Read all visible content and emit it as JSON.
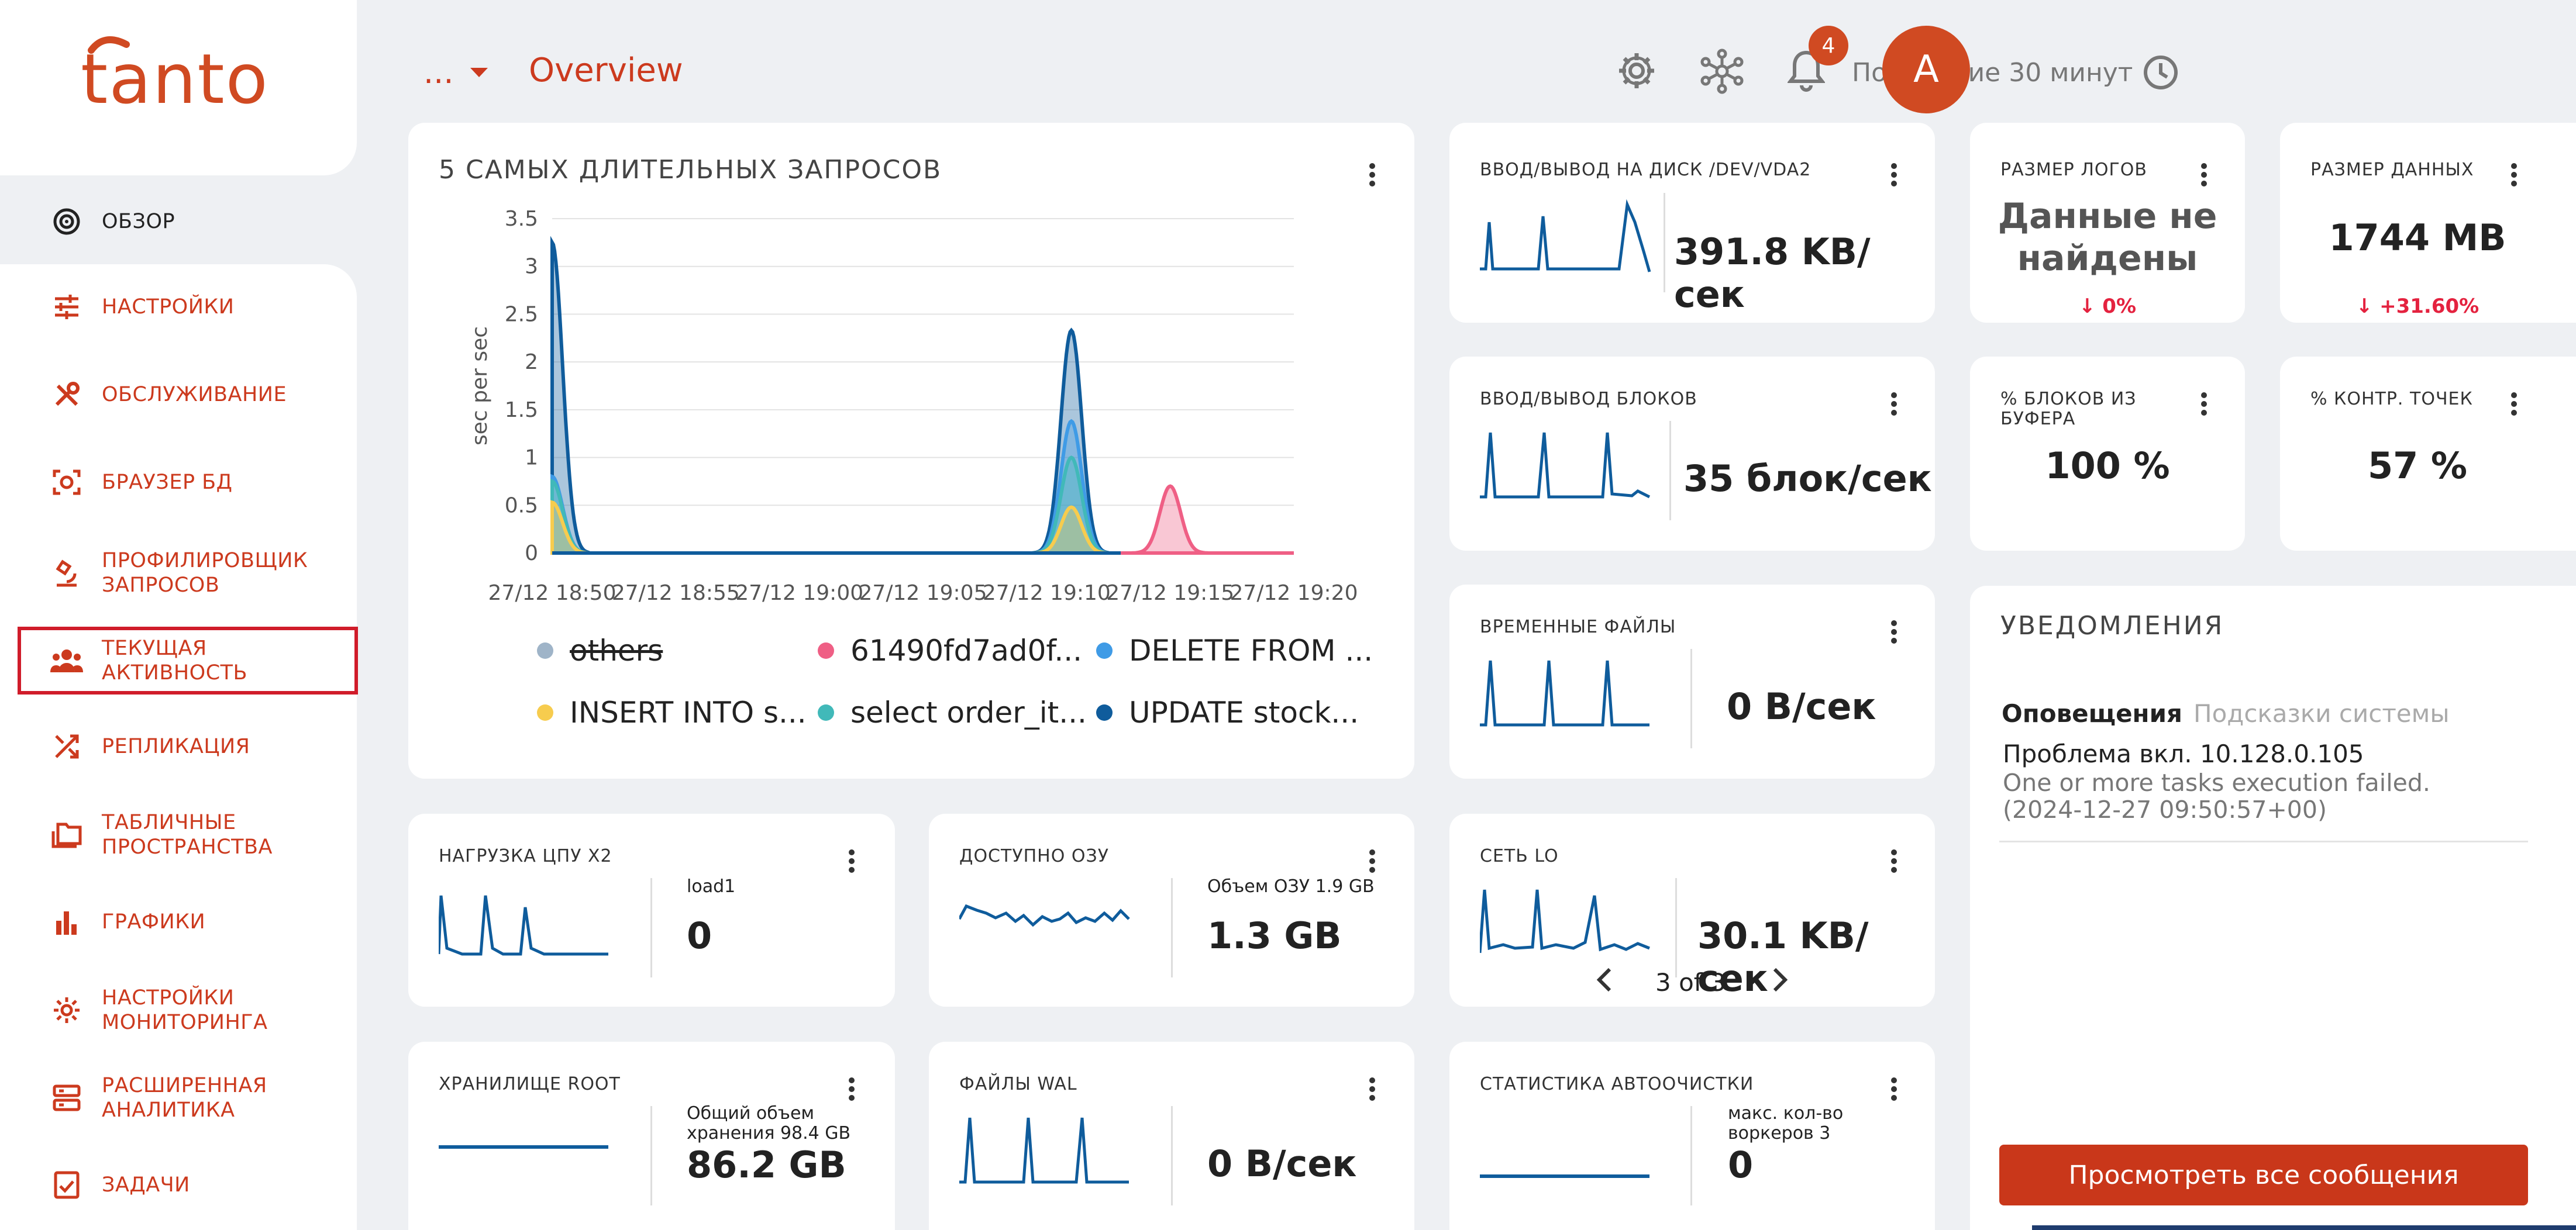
{
  "brand": {
    "logo_text": "tantor",
    "accent": "#d04a22",
    "text": "#cc3a1e",
    "selected_bg": "#eef0f3"
  },
  "header": {
    "context": "...",
    "title": "Overview",
    "time_range": "Последние 30 минут",
    "notifications_count": "4",
    "avatar": "A"
  },
  "sidebar": {
    "items": [
      {
        "label": "ОБЗОР",
        "icon": "target-icon"
      },
      {
        "label": "НАСТРОЙКИ",
        "icon": "sliders-icon"
      },
      {
        "label": "ОБСЛУЖИВАНИЕ",
        "icon": "tools-icon"
      },
      {
        "label": "БРАУЗЕР БД",
        "icon": "database-scan-icon"
      },
      {
        "label": "ПРОФИЛИРОВЩИК ЗАПРОСОВ",
        "label_lines": [
          "ПРОФИЛИРОВЩИК",
          "ЗАПРОСОВ"
        ],
        "icon": "microscope-icon"
      },
      {
        "label": "ТЕКУЩАЯ АКТИВНОСТЬ",
        "icon": "users-icon"
      },
      {
        "label": "РЕПЛИКАЦИЯ",
        "icon": "shuffle-icon"
      },
      {
        "label": "ТАБЛИЧНЫЕ ПРОСТРАНСТВА",
        "label_lines": [
          "ТАБЛИЧНЫЕ",
          "ПРОСТРАНСТВА"
        ],
        "icon": "folders-icon"
      },
      {
        "label": "ГРАФИКИ",
        "icon": "bar-chart-icon"
      },
      {
        "label": "НАСТРОЙКИ МОНИТОРИНГА",
        "label_lines": [
          "НАСТРОЙКИ",
          "МОНИТОРИНГА"
        ],
        "icon": "gear-icon"
      },
      {
        "label": "РАСШИРЕННАЯ АНАЛИТИКА",
        "label_lines": [
          "РАСШИРЕННАЯ",
          "АНАЛИТИКА"
        ],
        "icon": "server-icon"
      },
      {
        "label": "ЗАДАЧИ",
        "icon": "checklist-icon"
      }
    ]
  },
  "queries_card": {
    "title": "5 САМЫХ ДЛИТЕЛЬНЫХ ЗАПРОСОВ",
    "legend": [
      {
        "name": "others",
        "color": "#9fb4c8",
        "struck": true
      },
      {
        "name": "61490fd7ad0f...",
        "color": "#ef5f85"
      },
      {
        "name": "DELETE FROM ...",
        "color": "#3f9be6"
      },
      {
        "name": "INSERT INTO s...",
        "color": "#f7cc4e"
      },
      {
        "name": "select order_it...",
        "color": "#41b9b9"
      },
      {
        "name": "UPDATE stock...",
        "color": "#0f5c9c"
      }
    ]
  },
  "chart_data": {
    "type": "area",
    "title": "5 САМЫХ ДЛИТЕЛЬНЫХ ЗАПРОСОВ",
    "ylabel": "sec per sec",
    "xlabel": "",
    "ylim": [
      0,
      3.5
    ],
    "yticks": [
      "0",
      "0.5",
      "1",
      "1.5",
      "2",
      "2.5",
      "3",
      "3.5"
    ],
    "xticks": [
      "27/12 18:50",
      "27/12 18:55",
      "27/12 19:00",
      "27/12 19:05",
      "27/12 19:10",
      "27/12 19:15",
      "27/12 19:20"
    ],
    "xrange_minutes": [
      0,
      30
    ],
    "grid": true,
    "legend_position": "bottom",
    "series": [
      {
        "name": "UPDATE stock...",
        "color": "#0f5c9c",
        "peaks": [
          [
            0,
            3.25
          ],
          [
            21,
            2.33
          ]
        ]
      },
      {
        "name": "DELETE FROM ...",
        "color": "#3f9be6",
        "peaks": [
          [
            0,
            0.8
          ],
          [
            21,
            1.38
          ]
        ]
      },
      {
        "name": "select order_it...",
        "color": "#41b9b9",
        "peaks": [
          [
            0,
            0.75
          ],
          [
            21,
            1.0
          ]
        ]
      },
      {
        "name": "INSERT INTO s...",
        "color": "#f7cc4e",
        "peaks": [
          [
            0,
            0.53
          ],
          [
            21,
            0.48
          ]
        ]
      },
      {
        "name": "61490fd7ad0f...",
        "color": "#ef5f85",
        "peaks": [
          [
            25,
            0.7
          ]
        ]
      }
    ]
  },
  "disk_io": {
    "title": "ВВОД/ВЫВОД НА ДИСК /DEV/VDA2",
    "value": "391.8 KB/сек"
  },
  "block_io": {
    "title": "ВВОД/ВЫВОД БЛОКОВ",
    "value": "35 блок/сек"
  },
  "temp_files": {
    "title": "ВРЕМЕННЫЕ ФАЙЛЫ",
    "value": "0 B/сек"
  },
  "net_lo": {
    "title": "СЕТЬ LO",
    "value": "30.1 KB/сек",
    "pager": "3 of 3"
  },
  "autovacuum": {
    "title": "СТАТИСТИКА АВТООЧИСТКИ",
    "sub": "макс. кол-во воркеров 3",
    "value": "0"
  },
  "cpu": {
    "title": "НАГРУЗКА ЦПУ X2",
    "sub": "load1",
    "value": "0"
  },
  "ram": {
    "title": "ДОСТУПНО ОЗУ",
    "sub": "Объем ОЗУ 1.9 GB",
    "value": "1.3 GB"
  },
  "storage": {
    "title": "ХРАНИЛИЩЕ ROOT",
    "sub": "Общий объем хранения 98.4 GB",
    "value": "86.2 GB"
  },
  "wal": {
    "title": "ФАЙЛЫ WAL",
    "value": "0 B/сек"
  },
  "log_size": {
    "title": "РАЗМЕР ЛОГОВ",
    "value": "Данные не найдены",
    "delta": "0%"
  },
  "data_size": {
    "title": "РАЗМЕР ДАННЫХ",
    "value": "1744 MB",
    "delta": "+31.60%"
  },
  "buffer_blocks": {
    "title": "% БЛОКОВ ИЗ БУФЕРА",
    "value": "100 %"
  },
  "checkpoints": {
    "title": "% КОНТР. ТОЧЕК",
    "value": "57 %"
  },
  "notifications": {
    "title": "УВЕДОМЛЕНИЯ",
    "tabs": [
      "Оповещения",
      "Подсказки системы"
    ],
    "items": [
      {
        "title": "Проблема вкл. 10.128.0.105",
        "text": "One or more tasks execution failed.",
        "time": "(2024-12-27 09:50:57+00)"
      }
    ],
    "button": "Просмотреть все сообщения"
  }
}
